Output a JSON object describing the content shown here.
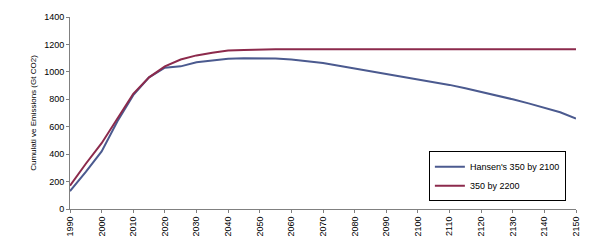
{
  "chart_data": {
    "type": "line",
    "y_label": "Cumulati ve Emissions (Gt CO2)",
    "x": [
      1990,
      1995,
      2000,
      2005,
      2010,
      2015,
      2020,
      2025,
      2030,
      2035,
      2040,
      2045,
      2050,
      2055,
      2060,
      2065,
      2070,
      2075,
      2080,
      2085,
      2090,
      2095,
      2100,
      2105,
      2110,
      2115,
      2120,
      2125,
      2130,
      2135,
      2140,
      2145,
      2150
    ],
    "series": [
      {
        "name": "Hansen's 350 by 2100",
        "color": "#4b5a8f",
        "values": [
          130,
          270,
          420,
          640,
          830,
          960,
          1030,
          1040,
          1070,
          1085,
          1095,
          1100,
          1100,
          1098,
          1090,
          1080,
          1065,
          1045,
          1025,
          1010,
          990,
          970,
          950,
          930,
          905,
          880,
          855,
          830,
          800,
          770,
          740,
          705,
          660
        ]
      },
      {
        "name": "350 by 2200",
        "color": "#8c2a4c",
        "values": [
          170,
          330,
          480,
          660,
          840,
          960,
          1040,
          1090,
          1120,
          1140,
          1155,
          1160,
          1165,
          1165,
          1165,
          1165,
          1165,
          1165,
          1165,
          1165,
          1165,
          1165,
          1165,
          1165,
          1165,
          1165,
          1165,
          1165,
          1165,
          1165,
          1165,
          1165,
          1165
        ]
      }
    ],
    "xlim": [
      1990,
      2150
    ],
    "xticks": [
      1990,
      2000,
      2010,
      2020,
      2030,
      2040,
      2050,
      2060,
      2070,
      2080,
      2090,
      2100,
      2110,
      2120,
      2130,
      2140,
      2150
    ],
    "ylim": [
      0,
      1400
    ],
    "yticks": [
      0,
      200,
      400,
      600,
      800,
      1000,
      1200,
      1400
    ],
    "grid": false,
    "legend": "bottom right"
  }
}
